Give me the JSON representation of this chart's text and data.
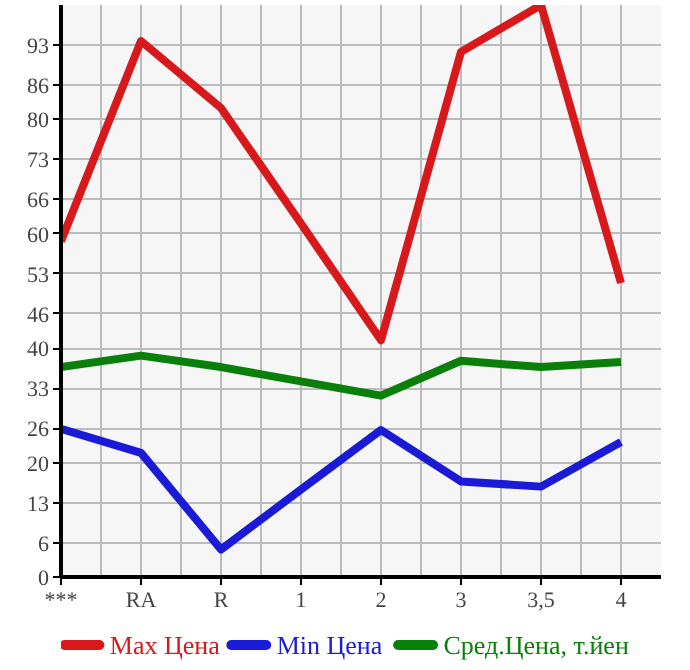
{
  "chart_data": {
    "type": "line",
    "categories": [
      "***",
      "RA",
      "R",
      "1",
      "2",
      "3",
      "3,5",
      "4"
    ],
    "series": [
      {
        "name": "Max Цена",
        "color": "#d7191c",
        "values": [
          58.7,
          93.7,
          82,
          61.8,
          41.4,
          91.8,
          100,
          51.4
        ]
      },
      {
        "name": "Min Цена",
        "color": "#1a1ad7",
        "values": [
          25.9,
          21.7,
          4.8,
          15.3,
          25.7,
          16.7,
          15.8,
          23.6
        ]
      },
      {
        "name": "Сред.Цена, т.йен",
        "color": "#0a800a",
        "values": [
          36.7,
          38.7,
          36.7,
          34.2,
          31.7,
          37.8,
          36.7,
          37.6
        ]
      }
    ],
    "ylim": [
      0,
      100
    ],
    "yticks": [
      0,
      6,
      13,
      20,
      26,
      33,
      40,
      46,
      53,
      60,
      66,
      73,
      80,
      86,
      93
    ],
    "grid": true,
    "legend": "bottom",
    "marker": "none",
    "line_style": "solid"
  }
}
